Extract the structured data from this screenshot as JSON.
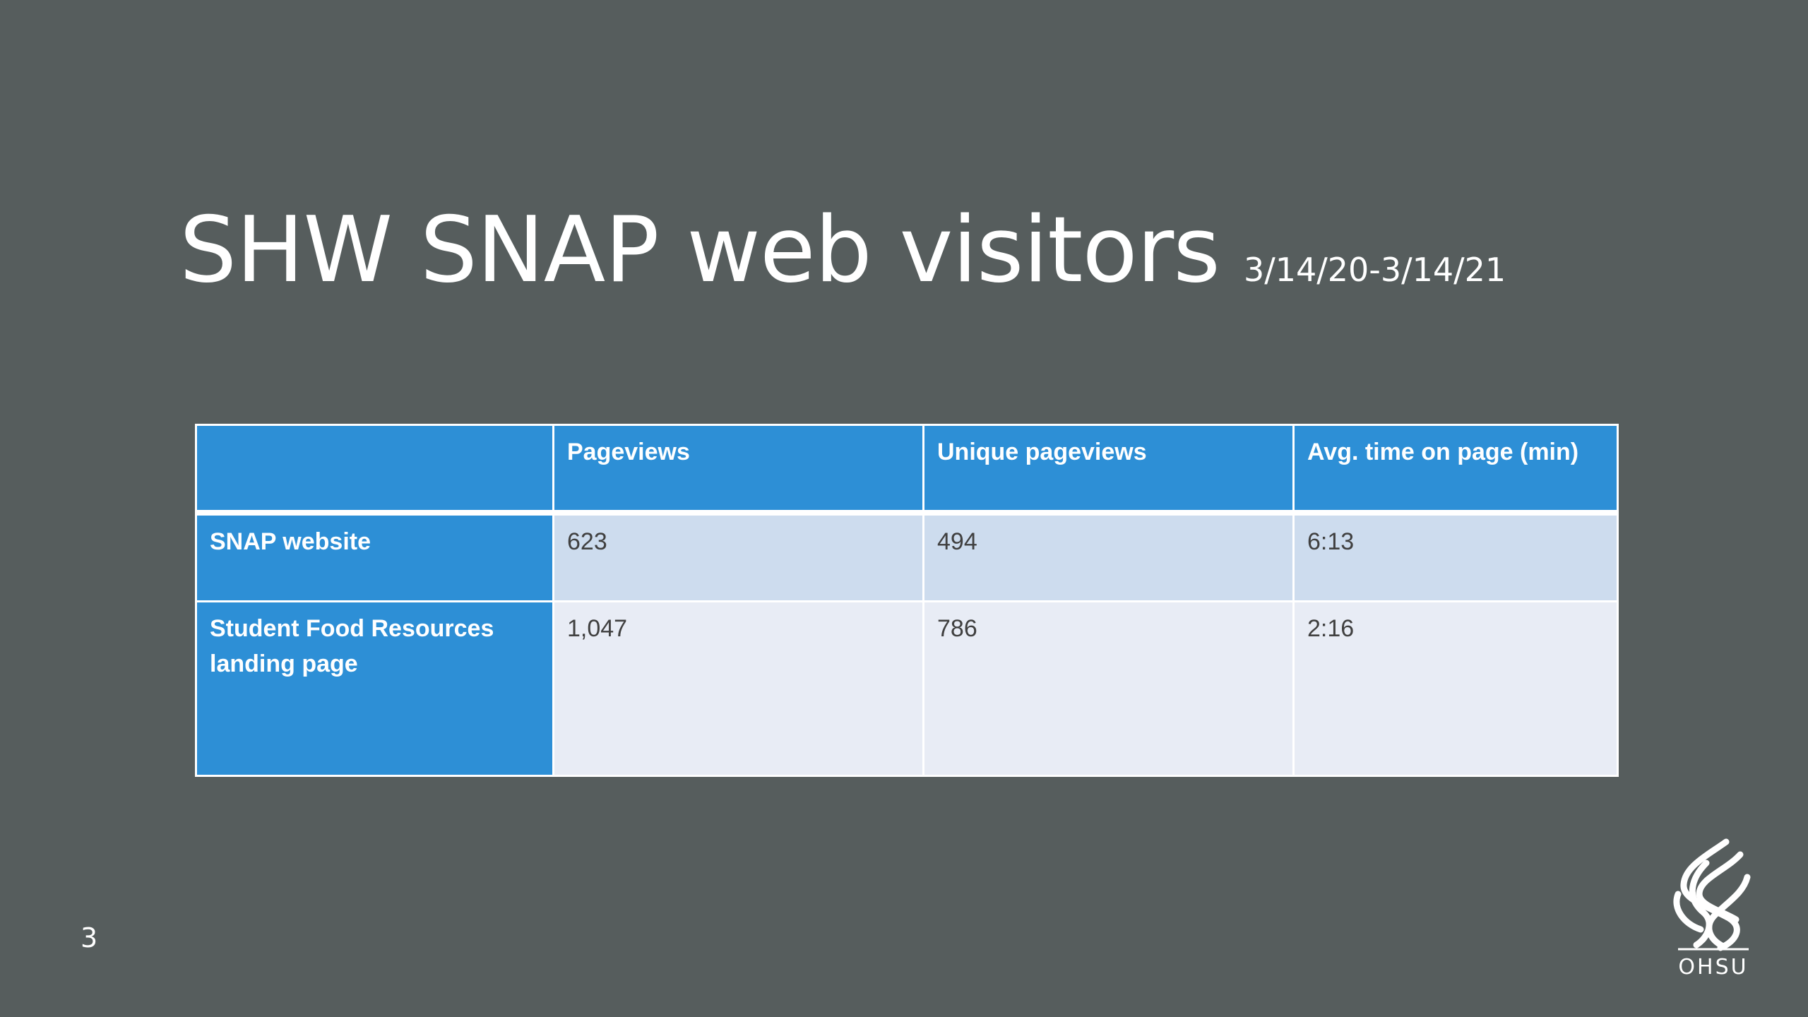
{
  "slide": {
    "title": "SHW SNAP web visitors",
    "subtitle": "3/14/20-3/14/21",
    "page_number": "3",
    "logo_text": "OHSU"
  },
  "table": {
    "headers": [
      "",
      "Pageviews",
      "Unique pageviews",
      "Avg. time on page (min)"
    ],
    "rows": [
      {
        "label": "SNAP website",
        "cells": [
          "623",
          "494",
          "6:13"
        ]
      },
      {
        "label": "Student Food Resources landing page",
        "cells": [
          "1,047",
          "786",
          "2:16"
        ]
      }
    ]
  },
  "colors": {
    "background": "#565d5d",
    "header_blue": "#2d8fd6",
    "row_1": "#cddcee",
    "row_2": "#e8ecf5",
    "body_text": "#404040"
  },
  "icons": {
    "logo": "ohsu-flame-logo-icon"
  }
}
